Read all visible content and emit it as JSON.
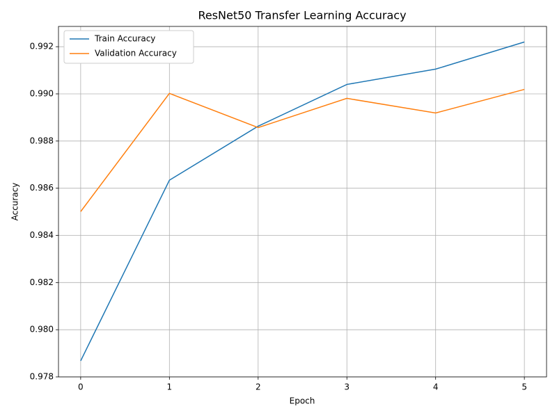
{
  "chart_data": {
    "type": "line",
    "title": "ResNet50 Transfer Learning Accuracy",
    "x_label": "Epoch",
    "y_label": "Accuracy",
    "x": [
      0,
      1,
      2,
      3,
      4,
      5
    ],
    "series": [
      {
        "name": "Train Accuracy",
        "color": "#1f77b4",
        "values": [
          0.97868,
          0.98634,
          0.98863,
          0.9904,
          0.99105,
          0.9922
        ]
      },
      {
        "name": "Validation Accuracy",
        "color": "#ff7f0e",
        "values": [
          0.98501,
          0.99002,
          0.98857,
          0.98981,
          0.98919,
          0.99019
        ]
      }
    ],
    "xlim": [
      -0.25,
      5.25
    ],
    "xticks": [
      0,
      1,
      2,
      3,
      4,
      5
    ],
    "ylim": [
      0.978,
      0.99286
    ],
    "yticks": [
      0.978,
      {
        "value": 0.98,
        "label": "0.980"
      },
      0.982,
      0.984,
      0.986,
      0.988,
      {
        "value": 0.99,
        "label": "0.990"
      },
      0.992
    ],
    "grid": true,
    "legend": "upper-left"
  }
}
